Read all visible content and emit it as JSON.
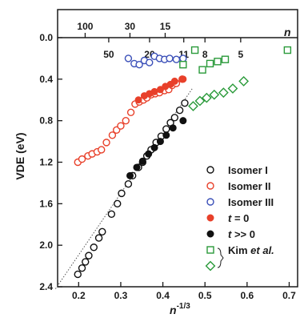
{
  "chart_data": {
    "type": "scatter",
    "title": "",
    "xlabel": "n",
    "xlabel_sup": "-1/3",
    "ylabel": "VDE (eV)",
    "top_axis_label": "n",
    "xlim": [
      0.15,
      0.72
    ],
    "ylim": [
      0.0,
      2.4
    ],
    "y_inverted": true,
    "grid": false,
    "legend_position": "lower-right",
    "x_ticks": [
      "0.2",
      "0.3",
      "0.4",
      "0.5",
      "0.6",
      "0.7"
    ],
    "y_ticks": [
      "0.0",
      "0.4",
      "0.8",
      "1.2",
      "1.6",
      "2.0",
      "2.4"
    ],
    "top_ticks_upper": [
      {
        "label": "100",
        "n": 100
      },
      {
        "label": "30",
        "n": 30
      },
      {
        "label": "15",
        "n": 15
      }
    ],
    "top_ticks_lower": [
      {
        "label": "50",
        "n": 50
      },
      {
        "label": "20",
        "n": 20
      },
      {
        "label": "11",
        "n": 11
      },
      {
        "label": "8",
        "n": 8
      },
      {
        "label": "5",
        "n": 5
      }
    ],
    "fit_line": {
      "style": "dotted",
      "points": [
        [
          0.145,
          2.42
        ],
        [
          0.47,
          0.49
        ]
      ]
    },
    "series": [
      {
        "name": "Isomer I",
        "marker": "circle-open",
        "color": "#111111",
        "points": [
          [
            0.198,
            2.28
          ],
          [
            0.208,
            2.22
          ],
          [
            0.216,
            2.16
          ],
          [
            0.224,
            2.1
          ],
          [
            0.236,
            2.02
          ],
          [
            0.248,
            1.93
          ],
          [
            0.256,
            1.87
          ],
          [
            0.278,
            1.7
          ],
          [
            0.292,
            1.6
          ],
          [
            0.302,
            1.5
          ],
          [
            0.318,
            1.41
          ],
          [
            0.328,
            1.33
          ],
          [
            0.342,
            1.25
          ],
          [
            0.352,
            1.2
          ],
          [
            0.362,
            1.14
          ],
          [
            0.372,
            1.08
          ],
          [
            0.384,
            1.01
          ],
          [
            0.396,
            0.95
          ],
          [
            0.408,
            0.88
          ],
          [
            0.418,
            0.82
          ],
          [
            0.428,
            0.77
          ],
          [
            0.44,
            0.7
          ],
          [
            0.452,
            0.63
          ]
        ]
      },
      {
        "name": "Isomer II",
        "marker": "circle-open",
        "color": "#e8402a",
        "points": [
          [
            0.198,
            1.2
          ],
          [
            0.208,
            1.17
          ],
          [
            0.222,
            1.14
          ],
          [
            0.232,
            1.12
          ],
          [
            0.244,
            1.1
          ],
          [
            0.254,
            1.08
          ],
          [
            0.266,
            1.01
          ],
          [
            0.28,
            0.94
          ],
          [
            0.29,
            0.89
          ],
          [
            0.3,
            0.85
          ],
          [
            0.312,
            0.8
          ],
          [
            0.324,
            0.72
          ],
          [
            0.334,
            0.64
          ],
          [
            0.344,
            0.62
          ],
          [
            0.354,
            0.6
          ],
          [
            0.362,
            0.58
          ],
          [
            0.372,
            0.55
          ],
          [
            0.382,
            0.54
          ],
          [
            0.392,
            0.53
          ],
          [
            0.404,
            0.51
          ],
          [
            0.414,
            0.5
          ],
          [
            0.422,
            0.46
          ],
          [
            0.432,
            0.44
          ],
          [
            0.446,
            0.4
          ]
        ]
      },
      {
        "name": "Isomer III",
        "marker": "circle-open",
        "color": "#3a4fb8",
        "points": [
          [
            0.318,
            0.2
          ],
          [
            0.332,
            0.25
          ],
          [
            0.344,
            0.26
          ],
          [
            0.356,
            0.22
          ],
          [
            0.368,
            0.24
          ],
          [
            0.38,
            0.18
          ],
          [
            0.392,
            0.2
          ],
          [
            0.404,
            0.21
          ],
          [
            0.416,
            0.2
          ],
          [
            0.432,
            0.21
          ],
          [
            0.448,
            0.2
          ]
        ]
      },
      {
        "name": "t = 0",
        "marker": "circle-filled",
        "color": "#e8402a",
        "points": [
          [
            0.342,
            0.6
          ],
          [
            0.356,
            0.56
          ],
          [
            0.368,
            0.54
          ],
          [
            0.38,
            0.52
          ],
          [
            0.394,
            0.5
          ],
          [
            0.406,
            0.47
          ],
          [
            0.418,
            0.45
          ],
          [
            0.428,
            0.42
          ],
          [
            0.448,
            0.4
          ]
        ]
      },
      {
        "name": "t >> 0",
        "marker": "circle-filled",
        "color": "#111111",
        "points": [
          [
            0.322,
            1.33
          ],
          [
            0.338,
            1.25
          ],
          [
            0.352,
            1.19
          ],
          [
            0.366,
            1.12
          ],
          [
            0.38,
            1.06
          ],
          [
            0.394,
            1.0
          ],
          [
            0.408,
            0.94
          ],
          [
            0.424,
            0.87
          ],
          [
            0.448,
            0.8
          ]
        ]
      },
      {
        "name": "Kim et al.",
        "marker": "square-open",
        "color": "#2a9a3a",
        "points": [
          [
            0.448,
            0.26
          ],
          [
            0.476,
            0.12
          ],
          [
            0.494,
            0.31
          ],
          [
            0.512,
            0.25
          ],
          [
            0.53,
            0.23
          ],
          [
            0.548,
            0.21
          ],
          [
            0.696,
            0.12
          ]
        ]
      },
      {
        "name": "Kim et al.",
        "marker": "diamond-open",
        "color": "#2a9a3a",
        "points": [
          [
            0.472,
            0.66
          ],
          [
            0.488,
            0.61
          ],
          [
            0.504,
            0.58
          ],
          [
            0.522,
            0.55
          ],
          [
            0.544,
            0.53
          ],
          [
            0.566,
            0.49
          ],
          [
            0.592,
            0.42
          ]
        ]
      }
    ],
    "legend": [
      {
        "name": "Isomer I",
        "marker": "circle-open",
        "color": "#111111"
      },
      {
        "name": "Isomer II",
        "marker": "circle-open",
        "color": "#e8402a"
      },
      {
        "name": "Isomer III",
        "marker": "circle-open",
        "color": "#3a4fb8"
      },
      {
        "name": "t = 0",
        "marker": "circle-filled",
        "color": "#e8402a"
      },
      {
        "name": "t >> 0",
        "marker": "circle-filled",
        "color": "#111111"
      },
      {
        "name": "Kim et al.",
        "marker": "square-open",
        "color": "#2a9a3a"
      },
      {
        "name": "",
        "marker": "diamond-open",
        "color": "#2a9a3a"
      }
    ]
  }
}
